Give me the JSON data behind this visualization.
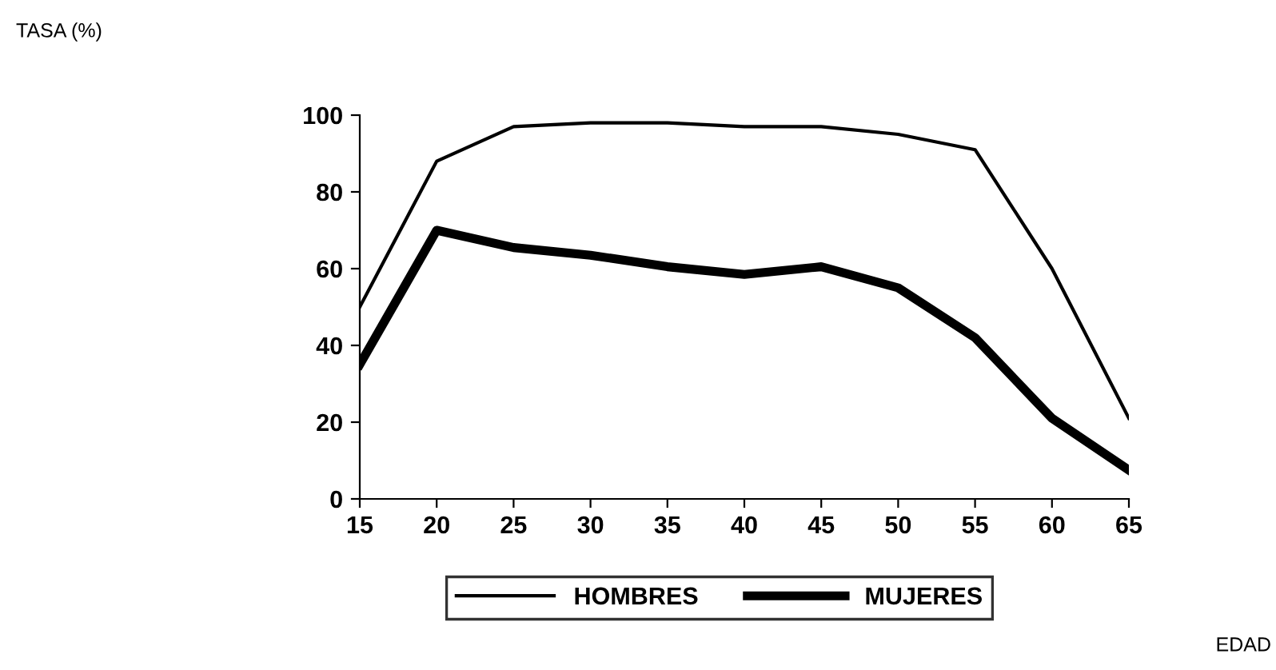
{
  "chart_data": {
    "type": "line",
    "annotations": [
      "TASA (%)",
      "EDAD"
    ],
    "categories": [
      "15",
      "20",
      "25",
      "30",
      "35",
      "40",
      "45",
      "50",
      "55",
      "60",
      "65"
    ],
    "series": [
      {
        "name": "HOMBRES",
        "color": "#000000",
        "values": [
          50,
          88,
          97,
          98,
          98,
          97,
          97,
          95,
          91,
          60,
          21
        ]
      },
      {
        "name": "MUJERES",
        "color": "#000000",
        "values": [
          35,
          70,
          65.5,
          63.5,
          60.5,
          58.5,
          60.5,
          55,
          42,
          21,
          7.5
        ]
      }
    ],
    "ylim": [
      0,
      100
    ],
    "yticks": [
      0,
      20,
      40,
      60,
      80,
      100
    ],
    "grid": false,
    "legend": "bottom",
    "marker": "none",
    "line_style": "solid"
  }
}
